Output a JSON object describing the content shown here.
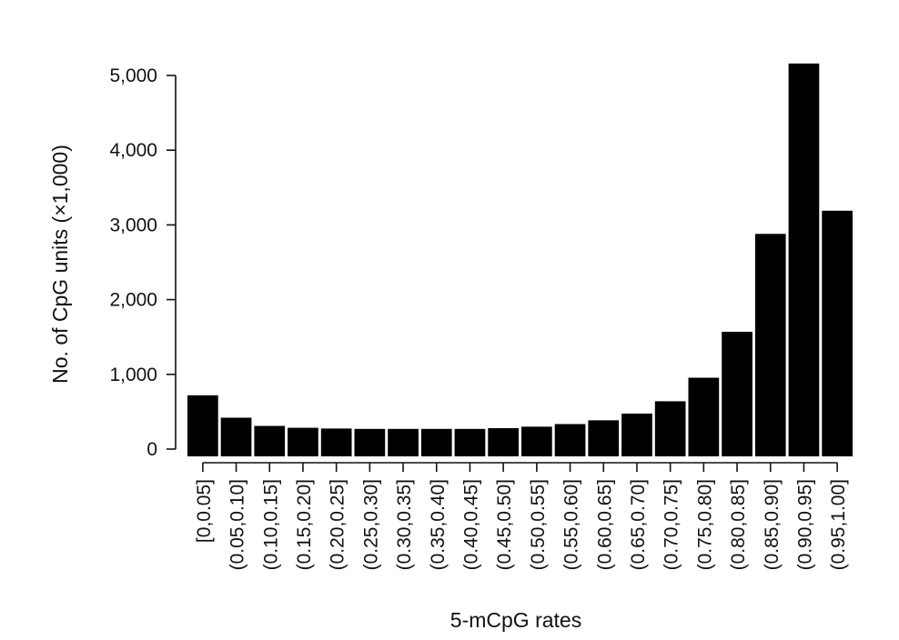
{
  "chart_data": {
    "type": "bar",
    "title": "",
    "xlabel": "5-mCpG rates",
    "ylabel": "No. of CpG units (×1,000)",
    "categories": [
      "[0,0.05]",
      "(0.05,0.10]",
      "(0.10,0.15]",
      "(0.15,0.20]",
      "(0.20,0.25]",
      "(0.25,0.30]",
      "(0.30,0.35]",
      "(0.35,0.40]",
      "(0.40,0.45]",
      "(0.45,0.50]",
      "(0.50,0.55]",
      "(0.55,0.60]",
      "(0.60,0.65]",
      "(0.65,0.70]",
      "(0.70,0.75]",
      "(0.75,0.80]",
      "(0.80,0.85]",
      "(0.85,0.90]",
      "(0.90,0.95]",
      "(0.95,1.00]"
    ],
    "values": [
      720,
      420,
      310,
      285,
      275,
      270,
      270,
      270,
      270,
      280,
      300,
      335,
      385,
      475,
      640,
      955,
      1570,
      2880,
      5160,
      3190
    ],
    "ylim": [
      0,
      5160
    ],
    "yticks": [
      0,
      1000,
      2000,
      3000,
      4000,
      5000
    ],
    "ytick_labels": [
      "0",
      "1,000",
      "2,000",
      "3,000",
      "4,000",
      "5,000"
    ],
    "grid": false,
    "legend": "none",
    "colors": {
      "bar": "#000000",
      "axis": "#111111"
    }
  }
}
